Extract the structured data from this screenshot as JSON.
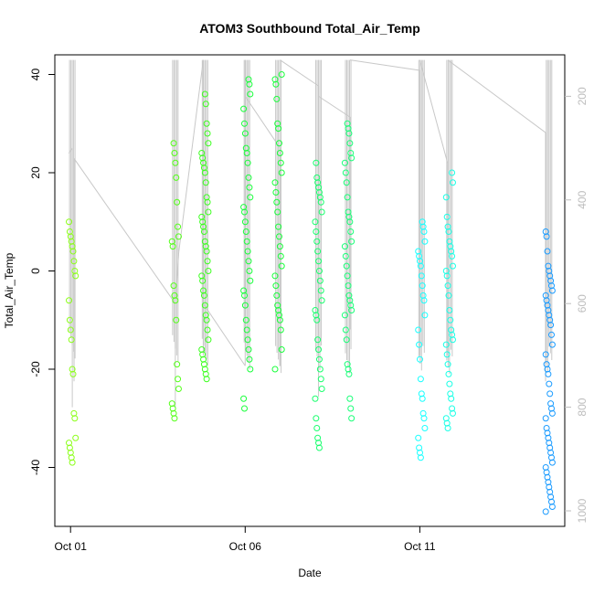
{
  "chart_data": {
    "type": "scatter",
    "title": "ATOM3 Southbound Total_Air_Temp",
    "xlabel": "Date",
    "ylabel": "Total_Air_Temp",
    "x_ticks": [
      "Oct 01",
      "Oct 06",
      "Oct 11"
    ],
    "x_tick_days": [
      1,
      6,
      11
    ],
    "xlim_days": [
      0.55,
      15.15
    ],
    "ylim": [
      -52,
      44
    ],
    "y_ticks": [
      -40,
      -20,
      0,
      20,
      40
    ],
    "secondary_axis": {
      "side": "right",
      "ticks": [
        200,
        400,
        600,
        800,
        1000
      ],
      "lim": [
        1030,
        120
      ],
      "color": "#bdbdbd",
      "note": "gray line series plotted against this axis"
    },
    "grid": false,
    "colors": {
      "marker_gradient": [
        "#80ff00",
        "#00ff40",
        "#00ffff",
        "#0080ff"
      ],
      "line": "#c8c8c8"
    },
    "series": [
      {
        "x_day": 1.05,
        "color": "#8cff1a",
        "values": [
          10,
          8,
          7,
          6,
          5,
          4,
          2,
          0,
          -1,
          -6,
          -10,
          -12,
          -14,
          -20,
          -21,
          -29,
          -30,
          -34,
          -35,
          -36,
          -37,
          -38,
          -39
        ]
      },
      {
        "x_day": 4.0,
        "color": "#55ff1a",
        "values": [
          26,
          24,
          22,
          19,
          14,
          9,
          7,
          6,
          5,
          -3,
          -5,
          -6,
          -10,
          -19,
          -22,
          -24,
          -27,
          -28,
          -29,
          -30
        ]
      },
      {
        "x_day": 4.85,
        "color": "#3cff1f",
        "values": [
          36,
          34,
          30,
          28,
          26,
          24,
          23,
          22,
          21,
          20,
          18,
          15,
          14,
          12,
          11,
          10,
          9,
          8,
          6,
          5,
          4,
          2,
          0,
          -1,
          -2,
          -4,
          -5,
          -7,
          -9,
          -10,
          -12,
          -14,
          -16,
          -17,
          -18,
          -19,
          -20,
          -21,
          -22
        ]
      },
      {
        "x_day": 6.05,
        "color": "#1aff3c",
        "values": [
          39,
          38,
          36,
          33,
          30,
          28,
          25,
          24,
          22,
          19,
          17,
          15,
          13,
          12,
          10,
          8,
          6,
          4,
          2,
          0,
          -2,
          -4,
          -5,
          -7,
          -10,
          -12,
          -14,
          -16,
          -18,
          -20,
          -26,
          -28
        ]
      },
      {
        "x_day": 6.95,
        "color": "#1aff3c",
        "values": [
          40,
          39,
          38,
          35,
          30,
          29,
          26,
          24,
          22,
          20,
          18,
          16,
          14,
          12,
          9,
          7,
          5,
          3,
          1,
          -1,
          -3,
          -5,
          -7,
          -8,
          -9,
          -10,
          -12,
          -16,
          -20
        ]
      },
      {
        "x_day": 8.1,
        "color": "#1aff6e",
        "values": [
          22,
          19,
          18,
          17,
          16,
          15,
          14,
          12,
          10,
          8,
          6,
          4,
          2,
          0,
          -2,
          -4,
          -6,
          -8,
          -9,
          -10,
          -14,
          -16,
          -18,
          -20,
          -22,
          -24,
          -26,
          -30,
          -32,
          -34,
          -35,
          -36
        ]
      },
      {
        "x_day": 8.95,
        "color": "#1aff78",
        "values": [
          30,
          29,
          28,
          26,
          24,
          23,
          22,
          20,
          18,
          15,
          12,
          11,
          10,
          8,
          6,
          5,
          3,
          1,
          -1,
          -3,
          -5,
          -6,
          -7,
          -8,
          -9,
          -12,
          -14,
          -19,
          -20,
          -21,
          -26,
          -28,
          -30
        ]
      },
      {
        "x_day": 11.05,
        "color": "#1affff",
        "values": [
          10,
          9,
          8,
          6,
          4,
          3,
          2,
          1,
          -1,
          -3,
          -5,
          -6,
          -9,
          -12,
          -15,
          -18,
          -22,
          -25,
          -26,
          -29,
          -30,
          -32,
          -34,
          -36,
          -37,
          -38
        ]
      },
      {
        "x_day": 11.85,
        "color": "#1affe6",
        "values": [
          20,
          18,
          15,
          11,
          9,
          8,
          6,
          5,
          4,
          3,
          1,
          0,
          -1,
          -3,
          -5,
          -8,
          -10,
          -12,
          -13,
          -14,
          -15,
          -17,
          -19,
          -21,
          -23,
          -25,
          -26,
          -28,
          -29,
          -30,
          -31,
          -32
        ]
      },
      {
        "x_day": 14.7,
        "color": "#1a9bff",
        "values": [
          8,
          7,
          4,
          1,
          0,
          -1,
          -2,
          -3,
          -4,
          -5,
          -6,
          -7,
          -8,
          -9,
          -10,
          -11,
          -13,
          -15,
          -17,
          -19,
          -20,
          -21,
          -23,
          -25,
          -27,
          -28,
          -29,
          -30,
          -32,
          -33,
          -34,
          -35,
          -36,
          -37,
          -38,
          -39,
          -40,
          -41,
          -42,
          -43,
          -44,
          -45,
          -46,
          -47,
          -48,
          -49
        ]
      }
    ],
    "line_series": {
      "name": "altitude/pressure trace (right axis)",
      "points": [
        [
          0.95,
          1.05,
          310,
          300
        ],
        [
          1.05,
          1.05,
          300,
          800
        ],
        [
          1.1,
          1.1,
          320,
          750
        ],
        [
          1.1,
          4.0,
          320,
          600
        ],
        [
          4.0,
          4.0,
          600,
          800
        ],
        [
          4.0,
          4.1,
          600,
          500
        ],
        [
          4.1,
          4.8,
          500,
          130
        ],
        [
          4.8,
          4.8,
          130,
          700
        ],
        [
          4.8,
          6.0,
          600,
          720
        ],
        [
          6.0,
          6.0,
          720,
          130
        ],
        [
          6.0,
          7.0,
          200,
          300
        ],
        [
          7.0,
          7.0,
          300,
          720
        ],
        [
          7.0,
          8.1,
          130,
          180
        ],
        [
          8.1,
          8.1,
          180,
          780
        ],
        [
          8.1,
          9.0,
          200,
          240
        ],
        [
          9.0,
          9.0,
          240,
          650
        ],
        [
          9.0,
          11.0,
          130,
          150
        ],
        [
          11.0,
          11.0,
          150,
          700
        ],
        [
          11.0,
          11.8,
          130,
          330
        ],
        [
          11.8,
          11.8,
          330,
          700
        ],
        [
          11.8,
          14.6,
          130,
          270
        ],
        [
          14.6,
          14.6,
          270,
          750
        ]
      ]
    }
  }
}
